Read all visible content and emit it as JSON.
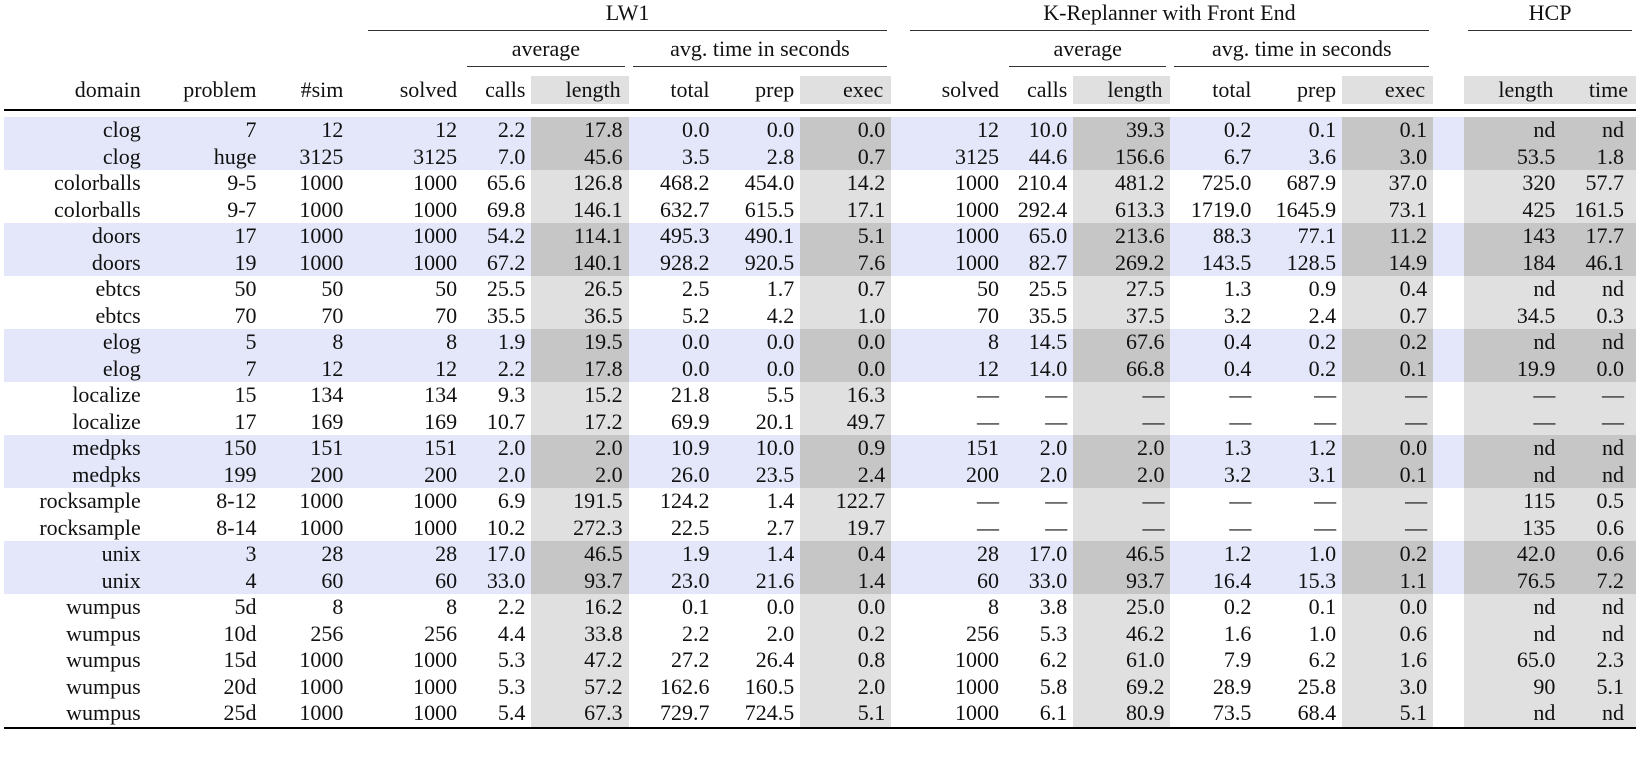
{
  "table": {
    "groups": {
      "lw1": "LW1",
      "kr": "K-Replanner with Front End",
      "hcp": "HCP"
    },
    "subgroups": {
      "lw1_average": "average",
      "lw1_time": "avg. time in seconds",
      "kr_average": "average",
      "kr_time": "avg. time in seconds"
    },
    "columns": [
      "domain",
      "problem",
      "#sim",
      "solved",
      "calls",
      "length",
      "total",
      "prep",
      "exec",
      "solved",
      "calls",
      "length",
      "total",
      "prep",
      "exec",
      "length",
      "time"
    ],
    "rows": [
      {
        "shade": "blue",
        "cells": [
          "clog",
          "7",
          "12",
          "12",
          "2.2",
          "17.8",
          "0.0",
          "0.0",
          "0.0",
          "12",
          "10.0",
          "39.3",
          "0.2",
          "0.1",
          "0.1",
          "nd",
          "nd"
        ]
      },
      {
        "shade": "blue",
        "cells": [
          "clog",
          "huge",
          "3125",
          "3125",
          "7.0",
          "45.6",
          "3.5",
          "2.8",
          "0.7",
          "3125",
          "44.6",
          "156.6",
          "6.7",
          "3.6",
          "3.0",
          "53.5",
          "1.8"
        ]
      },
      {
        "shade": "white",
        "cells": [
          "colorballs",
          "9-5",
          "1000",
          "1000",
          "65.6",
          "126.8",
          "468.2",
          "454.0",
          "14.2",
          "1000",
          "210.4",
          "481.2",
          "725.0",
          "687.9",
          "37.0",
          "320",
          "57.7"
        ]
      },
      {
        "shade": "white",
        "cells": [
          "colorballs",
          "9-7",
          "1000",
          "1000",
          "69.8",
          "146.1",
          "632.7",
          "615.5",
          "17.1",
          "1000",
          "292.4",
          "613.3",
          "1719.0",
          "1645.9",
          "73.1",
          "425",
          "161.5"
        ]
      },
      {
        "shade": "blue",
        "cells": [
          "doors",
          "17",
          "1000",
          "1000",
          "54.2",
          "114.1",
          "495.3",
          "490.1",
          "5.1",
          "1000",
          "65.0",
          "213.6",
          "88.3",
          "77.1",
          "11.2",
          "143",
          "17.7"
        ]
      },
      {
        "shade": "blue",
        "cells": [
          "doors",
          "19",
          "1000",
          "1000",
          "67.2",
          "140.1",
          "928.2",
          "920.5",
          "7.6",
          "1000",
          "82.7",
          "269.2",
          "143.5",
          "128.5",
          "14.9",
          "184",
          "46.1"
        ]
      },
      {
        "shade": "white",
        "cells": [
          "ebtcs",
          "50",
          "50",
          "50",
          "25.5",
          "26.5",
          "2.5",
          "1.7",
          "0.7",
          "50",
          "25.5",
          "27.5",
          "1.3",
          "0.9",
          "0.4",
          "nd",
          "nd"
        ]
      },
      {
        "shade": "white",
        "cells": [
          "ebtcs",
          "70",
          "70",
          "70",
          "35.5",
          "36.5",
          "5.2",
          "4.2",
          "1.0",
          "70",
          "35.5",
          "37.5",
          "3.2",
          "2.4",
          "0.7",
          "34.5",
          "0.3"
        ]
      },
      {
        "shade": "blue",
        "cells": [
          "elog",
          "5",
          "8",
          "8",
          "1.9",
          "19.5",
          "0.0",
          "0.0",
          "0.0",
          "8",
          "14.5",
          "67.6",
          "0.4",
          "0.2",
          "0.2",
          "nd",
          "nd"
        ]
      },
      {
        "shade": "blue",
        "cells": [
          "elog",
          "7",
          "12",
          "12",
          "2.2",
          "17.8",
          "0.0",
          "0.0",
          "0.0",
          "12",
          "14.0",
          "66.8",
          "0.4",
          "0.2",
          "0.1",
          "19.9",
          "0.0"
        ]
      },
      {
        "shade": "white",
        "cells": [
          "localize",
          "15",
          "134",
          "134",
          "9.3",
          "15.2",
          "21.8",
          "5.5",
          "16.3",
          "—",
          "—",
          "—",
          "—",
          "—",
          "—",
          "—",
          "—"
        ]
      },
      {
        "shade": "white",
        "cells": [
          "localize",
          "17",
          "169",
          "169",
          "10.7",
          "17.2",
          "69.9",
          "20.1",
          "49.7",
          "—",
          "—",
          "—",
          "—",
          "—",
          "—",
          "—",
          "—"
        ]
      },
      {
        "shade": "blue",
        "cells": [
          "medpks",
          "150",
          "151",
          "151",
          "2.0",
          "2.0",
          "10.9",
          "10.0",
          "0.9",
          "151",
          "2.0",
          "2.0",
          "1.3",
          "1.2",
          "0.0",
          "nd",
          "nd"
        ]
      },
      {
        "shade": "blue",
        "cells": [
          "medpks",
          "199",
          "200",
          "200",
          "2.0",
          "2.0",
          "26.0",
          "23.5",
          "2.4",
          "200",
          "2.0",
          "2.0",
          "3.2",
          "3.1",
          "0.1",
          "nd",
          "nd"
        ]
      },
      {
        "shade": "white",
        "cells": [
          "rocksample",
          "8-12",
          "1000",
          "1000",
          "6.9",
          "191.5",
          "124.2",
          "1.4",
          "122.7",
          "—",
          "—",
          "—",
          "—",
          "—",
          "—",
          "115",
          "0.5"
        ]
      },
      {
        "shade": "white",
        "cells": [
          "rocksample",
          "8-14",
          "1000",
          "1000",
          "10.2",
          "272.3",
          "22.5",
          "2.7",
          "19.7",
          "—",
          "—",
          "—",
          "—",
          "—",
          "—",
          "135",
          "0.6"
        ]
      },
      {
        "shade": "blue",
        "cells": [
          "unix",
          "3",
          "28",
          "28",
          "17.0",
          "46.5",
          "1.9",
          "1.4",
          "0.4",
          "28",
          "17.0",
          "46.5",
          "1.2",
          "1.0",
          "0.2",
          "42.0",
          "0.6"
        ]
      },
      {
        "shade": "blue",
        "cells": [
          "unix",
          "4",
          "60",
          "60",
          "33.0",
          "93.7",
          "23.0",
          "21.6",
          "1.4",
          "60",
          "33.0",
          "93.7",
          "16.4",
          "15.3",
          "1.1",
          "76.5",
          "7.2"
        ]
      },
      {
        "shade": "white",
        "cells": [
          "wumpus",
          "5d",
          "8",
          "8",
          "2.2",
          "16.2",
          "0.1",
          "0.0",
          "0.0",
          "8",
          "3.8",
          "25.0",
          "0.2",
          "0.1",
          "0.0",
          "nd",
          "nd"
        ]
      },
      {
        "shade": "white",
        "cells": [
          "wumpus",
          "10d",
          "256",
          "256",
          "4.4",
          "33.8",
          "2.2",
          "2.0",
          "0.2",
          "256",
          "5.3",
          "46.2",
          "1.6",
          "1.0",
          "0.6",
          "nd",
          "nd"
        ]
      },
      {
        "shade": "white",
        "cells": [
          "wumpus",
          "15d",
          "1000",
          "1000",
          "5.3",
          "47.2",
          "27.2",
          "26.4",
          "0.8",
          "1000",
          "6.2",
          "61.0",
          "7.9",
          "6.2",
          "1.6",
          "65.0",
          "2.3"
        ]
      },
      {
        "shade": "white",
        "cells": [
          "wumpus",
          "20d",
          "1000",
          "1000",
          "5.3",
          "57.2",
          "162.6",
          "160.5",
          "2.0",
          "1000",
          "5.8",
          "69.2",
          "28.9",
          "25.8",
          "3.0",
          "90",
          "5.1"
        ]
      },
      {
        "shade": "white",
        "cells": [
          "wumpus",
          "25d",
          "1000",
          "1000",
          "5.4",
          "67.3",
          "729.7",
          "724.5",
          "5.1",
          "1000",
          "6.1",
          "80.9",
          "73.5",
          "68.4",
          "5.1",
          "nd",
          "nd"
        ]
      }
    ]
  },
  "colors": {
    "row_blue": "#e3e7f9",
    "col_gray_light": "#e0e0e0",
    "col_gray_dark": "#c6c6c6"
  }
}
